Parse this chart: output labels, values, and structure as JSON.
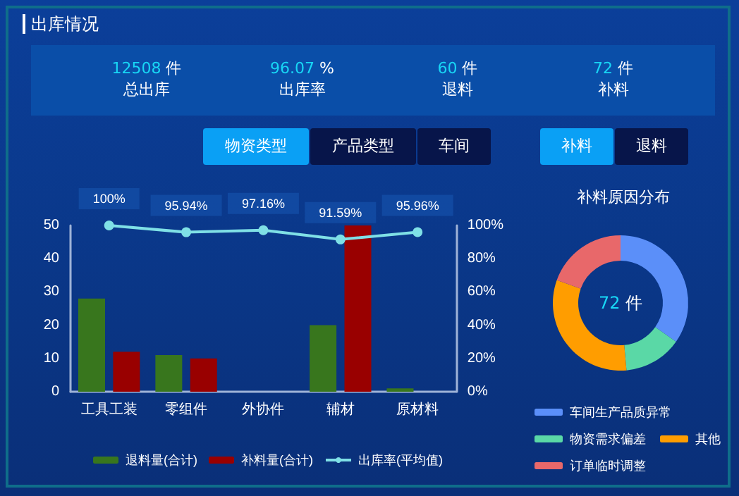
{
  "chart_data": [
    {
      "type": "other",
      "title": "出库情况",
      "annotations": [
        "12508 件",
        "总出库",
        "96.07 %",
        "出库率",
        "60 件",
        "退料",
        "72 件",
        "补料"
      ]
    },
    {
      "type": "bar",
      "categories": [
        "工具工装",
        "零组件",
        "外协件",
        "辅材",
        "原材料"
      ],
      "series": [
        {
          "name": "退料量(合计)",
          "color": "#38761d",
          "values": [
            28,
            11,
            0,
            20,
            1
          ]
        },
        {
          "name": "补料量(合计)",
          "color": "#990000",
          "values": [
            12,
            10,
            0,
            50,
            0
          ]
        },
        {
          "name": "出库率(平均值)",
          "type": "line",
          "axis": "y2",
          "color": "#7fe0e6",
          "values": [
            100,
            95.94,
            97.16,
            91.59,
            95.96
          ],
          "value_labels": [
            "100%",
            "95.94%",
            "97.16%",
            "91.59%",
            "95.96%"
          ]
        }
      ],
      "ylim": [
        0,
        50
      ],
      "yticks": [
        0,
        10,
        20,
        30,
        40,
        50
      ],
      "y2lim": [
        0,
        100
      ],
      "y2ticks": [
        {
          "value": 0,
          "label": "0%"
        },
        {
          "value": 20,
          "label": "20%"
        },
        {
          "value": 40,
          "label": "40%"
        },
        {
          "value": 60,
          "label": "60%"
        },
        {
          "value": 80,
          "label": "80%"
        },
        {
          "value": 100,
          "label": "100%"
        }
      ],
      "marker": "circle",
      "legend": "bottom",
      "annotations": [
        "物资类型",
        "产品类型",
        "车间"
      ]
    },
    {
      "type": "donut",
      "title": "补料原因分布",
      "categories": [
        "车间生产品质异常",
        "物资需求偏差",
        "其他",
        "订单临时调整"
      ],
      "values": [
        34.7,
        13.9,
        31.9,
        19.5
      ],
      "colors": [
        "#5b8ff9",
        "#5ad8a6",
        "#ff9d00",
        "#e8686a"
      ],
      "legend": "bottom",
      "annotations": [
        "72 件",
        "补料",
        "退料"
      ]
    }
  ]
}
